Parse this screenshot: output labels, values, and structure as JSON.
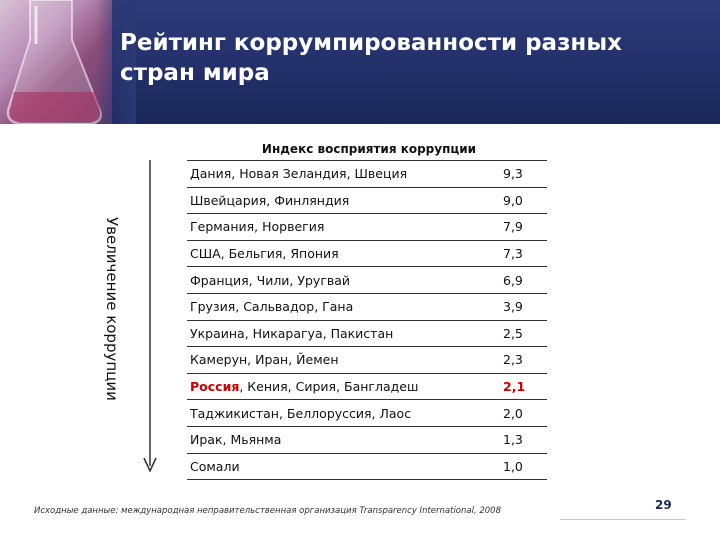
{
  "slide": {
    "title": "Рейтинг коррумпированности разных стран мира",
    "table_title": "Индекс восприятия коррупции",
    "side_label": "Увеличение коррупции",
    "source": "Исходные данные: международная неправительственная организация Transparency International, 2008",
    "page_number": "29",
    "colors": {
      "header_bg": "#23306a",
      "highlight": "#cc0000"
    }
  },
  "table": {
    "rows": [
      {
        "countries": "Дания, Новая Зеландия, Швеция",
        "value": "9,3"
      },
      {
        "countries": "Швейцария, Финляндия",
        "value": "9,0"
      },
      {
        "countries": "Германия, Норвегия",
        "value": "7,9"
      },
      {
        "countries": "США, Бельгия, Япония",
        "value": "7,3"
      },
      {
        "countries": "Франция, Чили, Уругвай",
        "value": "6,9"
      },
      {
        "countries": "Грузия, Сальвадор, Гана",
        "value": "3,9"
      },
      {
        "countries": "Украина, Никарагуа, Пакистан",
        "value": "2,5"
      },
      {
        "countries": "Камерун, Иран, Йемен",
        "value": "2,3"
      },
      {
        "highlight_country": "Россия",
        "countries_rest": ", Кения, Сирия, Бангладеш",
        "value": "2,1"
      },
      {
        "countries": "Таджикистан, Беллоруссия, Лаос",
        "value": "2,0"
      },
      {
        "countries": "Ирак, Мьянма",
        "value": "1,3"
      },
      {
        "countries": "Сомали",
        "value": "1,0"
      }
    ]
  }
}
